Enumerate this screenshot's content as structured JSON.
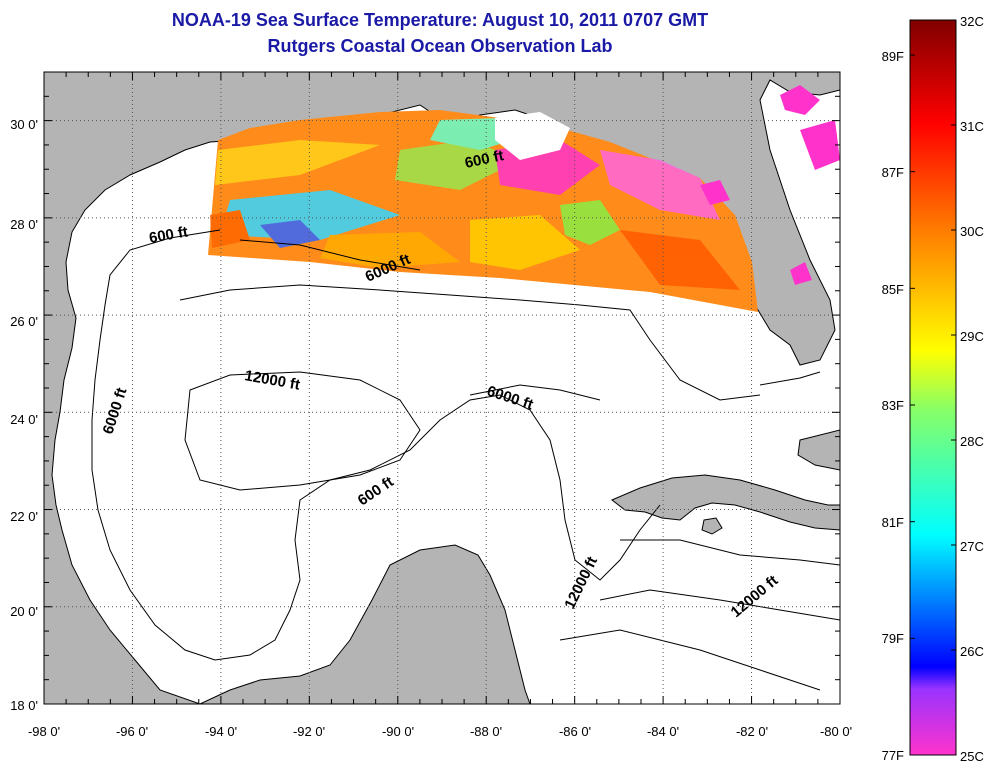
{
  "header": {
    "title": "NOAA-19 Sea Surface Temperature:  August 10, 2011 0707 GMT",
    "subtitle": "Rutgers Coastal Ocean Observation Lab"
  },
  "map": {
    "lon_ticks": [
      "-98 0'",
      "-96 0'",
      "-94 0'",
      "-92 0'",
      "-90 0'",
      "-88 0'",
      "-86 0'",
      "-84 0'",
      "-82 0'",
      "-80 0'"
    ],
    "lat_ticks": [
      "30 0'",
      "28 0'",
      "26 0'",
      "24 0'",
      "22 0'",
      "20 0'",
      "18 0'"
    ],
    "lon_range": [
      -98,
      -80
    ],
    "lat_range": [
      18,
      31
    ],
    "colors": {
      "land": "#b4b4b4",
      "ocean": "#ffffff",
      "grid": "#555555"
    },
    "contour_labels": [
      {
        "id": "600-north",
        "text": "600 ft"
      },
      {
        "id": "600-west",
        "text": "600 ft"
      },
      {
        "id": "6000-north",
        "text": "6000 ft"
      },
      {
        "id": "12000-central",
        "text": "12000 ft"
      },
      {
        "id": "6000-west",
        "text": "6000 ft"
      },
      {
        "id": "6000-east",
        "text": "6000 ft"
      },
      {
        "id": "600-central",
        "text": "600 ft"
      },
      {
        "id": "12000-south",
        "text": "12000 ft"
      },
      {
        "id": "12000-se",
        "text": "12000 ft"
      }
    ]
  },
  "colorbar": {
    "celsius": [
      "32C",
      "31C",
      "30C",
      "29C",
      "28C",
      "27C",
      "26C",
      "25C"
    ],
    "fahrenheit": [
      "89F",
      "87F",
      "85F",
      "83F",
      "81F",
      "79F",
      "77F"
    ]
  }
}
